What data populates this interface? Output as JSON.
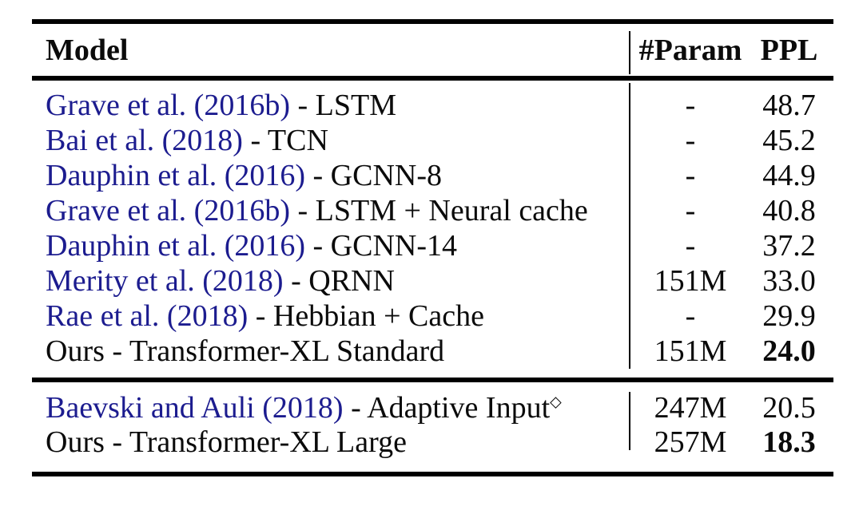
{
  "table": {
    "title": "Language model results table",
    "columns": [
      "Model",
      "#Param",
      "PPL"
    ],
    "accent_color": "#1c1c8f",
    "rule_color": "#000000",
    "rows": [
      {
        "citation": "Grave et al. (2016b)",
        "rest": " - LSTM",
        "sup": "",
        "param": "-",
        "ppl": "48.7",
        "ppl_bold": false
      },
      {
        "citation": "Bai et al. (2018)",
        "rest": " - TCN",
        "sup": "",
        "param": "-",
        "ppl": "45.2",
        "ppl_bold": false
      },
      {
        "citation": "Dauphin et al. (2016)",
        "rest": " - GCNN-8",
        "sup": "",
        "param": "-",
        "ppl": "44.9",
        "ppl_bold": false
      },
      {
        "citation": "Grave et al. (2016b)",
        "rest": " - LSTM + Neural cache",
        "sup": "",
        "param": "-",
        "ppl": "40.8",
        "ppl_bold": false
      },
      {
        "citation": "Dauphin et al. (2016)",
        "rest": " - GCNN-14",
        "sup": "",
        "param": "-",
        "ppl": "37.2",
        "ppl_bold": false
      },
      {
        "citation": "Merity et al. (2018)",
        "rest": " - QRNN",
        "sup": "",
        "param": "151M",
        "ppl": "33.0",
        "ppl_bold": false
      },
      {
        "citation": "Rae et al. (2018)",
        "rest": " - Hebbian + Cache",
        "sup": "",
        "param": "-",
        "ppl": "29.9",
        "ppl_bold": false
      },
      {
        "citation": "",
        "rest": "Ours - Transformer-XL Standard",
        "sup": "",
        "param": "151M",
        "ppl": "24.0",
        "ppl_bold": true
      },
      {
        "citation": "Baevski and Auli (2018)",
        "rest": " - Adaptive Input",
        "sup": "◇",
        "param": "247M",
        "ppl": "20.5",
        "ppl_bold": false
      },
      {
        "citation": "",
        "rest": "Ours - Transformer-XL Large",
        "sup": "",
        "param": "257M",
        "ppl": "18.3",
        "ppl_bold": true
      }
    ]
  }
}
